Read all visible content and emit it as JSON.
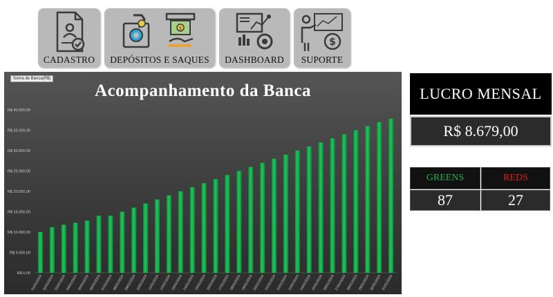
{
  "nav": {
    "cadastro": "CADASTRO",
    "depositos": "DEPÓSITOS E SAQUES",
    "dashboard": "DASHBOARD",
    "suporte": "SUPORTE"
  },
  "chart": {
    "tag": "Soma de Banca(R$)",
    "title": "Acompanhamento da Banca"
  },
  "lucro": {
    "title": "LUCRO MENSAL",
    "value": "R$ 8.679,00"
  },
  "stats": {
    "greens_label": "GREENS",
    "greens_value": "87",
    "reds_label": "REDS",
    "reds_value": "27"
  },
  "colors": {
    "bar": "#22c55e",
    "greens": "#22b04b",
    "reds": "#e01b1b",
    "panel": "#3c3c3c",
    "nav_bg": "#b9b9b9"
  },
  "chart_data": {
    "type": "bar",
    "title": "Acompanhamento da Banca",
    "xlabel": "",
    "ylabel": "",
    "ylim": [
      0,
      40000
    ],
    "grid": false,
    "yticks": [
      "R$ 0,00",
      "R$ 5.000,00",
      "R$ 10.000,00",
      "R$ 15.000,00",
      "R$ 20.000,00",
      "R$ 25.000,00",
      "R$ 30.000,00",
      "R$ 35.000,00",
      "R$ 40.000,00"
    ],
    "categories": [
      "01/01/2024",
      "02/01/2024",
      "03/01/2024",
      "04/01/2024",
      "05/01/2024",
      "06/01/2024",
      "07/01/2024",
      "08/01/2024",
      "09/01/2024",
      "10/01/2024",
      "11/01/2024",
      "12/01/2024",
      "13/01/2024",
      "14/01/2024",
      "15/01/2024",
      "16/01/2024",
      "17/01/2024",
      "18/01/2024",
      "19/01/2024",
      "20/01/2024",
      "21/01/2024",
      "22/01/2024",
      "23/01/2024",
      "24/01/2024",
      "25/01/2024",
      "26/01/2024",
      "27/01/2024",
      "28/01/2024",
      "29/01/2024",
      "30/01/2024",
      "31/01/2024"
    ],
    "values": [
      10000,
      11200,
      11800,
      12300,
      12800,
      14000,
      14000,
      15000,
      16000,
      17000,
      18000,
      19000,
      20000,
      21000,
      22000,
      23000,
      24000,
      25000,
      26000,
      27000,
      28000,
      29000,
      30000,
      31000,
      32000,
      33000,
      34000,
      35000,
      36000,
      37000,
      37800
    ]
  }
}
